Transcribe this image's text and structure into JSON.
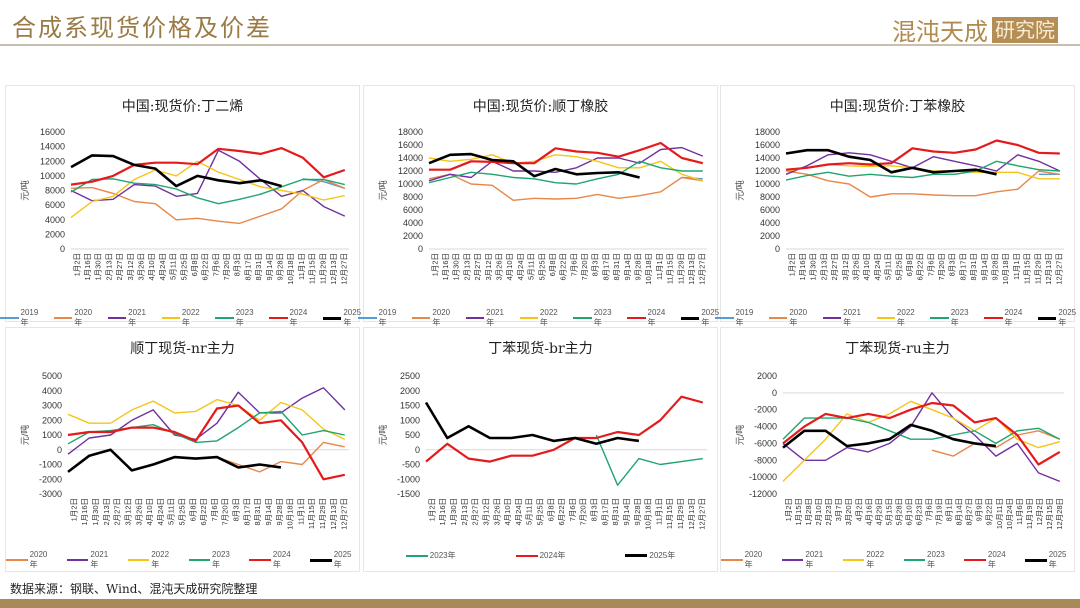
{
  "header": {
    "title": "合成系现货价格及价差",
    "logo_text": "混沌天成",
    "logo_box": "研究院"
  },
  "source": "数据来源：钢联、Wind、混沌天成研究院整理",
  "colors": {
    "2019年": "#5B9BD5",
    "2020年": "#E8874A",
    "2021年": "#7030A0",
    "2022年": "#F5C518",
    "2023年": "#1FA56E",
    "2024年": "#E41A1C",
    "2025年": "#000000"
  },
  "chart_data": [
    {
      "type": "line",
      "title": "中国:现货价:丁二烯",
      "ylabel": "元/吨",
      "ylim": [
        0,
        16000
      ],
      "yticks": [
        0,
        2000,
        4000,
        6000,
        8000,
        10000,
        12000,
        14000,
        16000
      ],
      "xticks": [
        "1月2日",
        "1月16日",
        "1月30日",
        "2月13日",
        "2月27日",
        "3月12日",
        "3月26日",
        "4月10日",
        "4月24日",
        "5月11日",
        "5月25日",
        "6月8日",
        "6月22日",
        "7月6日",
        "7月20日",
        "8月3日",
        "8月17日",
        "8月31日",
        "9月14日",
        "9月28日",
        "10月18日",
        "11月1日",
        "11月15日",
        "11月29日",
        "12月13日",
        "12月27日"
      ],
      "series": [
        {
          "name": "2019年",
          "values": [
            null,
            null,
            null,
            null,
            null,
            null,
            null,
            null,
            null,
            null,
            null,
            9600,
            9200,
            8300
          ]
        },
        {
          "name": "2020年",
          "values": [
            8300,
            8400,
            7600,
            6500,
            6200,
            4000,
            4200,
            3800,
            3500,
            4500,
            5500,
            8000,
            9500,
            8300
          ]
        },
        {
          "name": "2021年",
          "values": [
            8000,
            6600,
            6800,
            8800,
            8600,
            7200,
            7600,
            13500,
            12000,
            9500,
            7200,
            8000,
            5800,
            4500
          ]
        },
        {
          "name": "2022年",
          "values": [
            4300,
            6500,
            7200,
            9500,
            10800,
            10000,
            12000,
            10500,
            9500,
            8500,
            8000,
            7500,
            6700,
            7300
          ]
        },
        {
          "name": "2023年",
          "values": [
            7800,
            9500,
            9600,
            9000,
            8800,
            8200,
            7000,
            6200,
            6800,
            7500,
            8500,
            9500,
            9500,
            8800
          ]
        },
        {
          "name": "2024年",
          "values": [
            8800,
            9200,
            10000,
            11500,
            11800,
            11800,
            11600,
            13700,
            13400,
            13000,
            13800,
            12500,
            9800,
            10800
          ]
        },
        {
          "name": "2025年",
          "values": [
            11200,
            12800,
            12700,
            11500,
            11000,
            8600,
            10000,
            9400,
            9000,
            9400,
            8600,
            null,
            null,
            null
          ]
        }
      ]
    },
    {
      "type": "line",
      "title": "中国:现货价:顺丁橡胶",
      "ylabel": "元/吨",
      "ylim": [
        0,
        18000
      ],
      "yticks": [
        0,
        2000,
        4000,
        6000,
        8000,
        10000,
        12000,
        14000,
        16000,
        18000
      ],
      "xticks": [
        "1月2日",
        "1月16日",
        "1月30日",
        "2月13日",
        "2月27日",
        "3月12日",
        "3月26日",
        "4月10日",
        "4月24日",
        "5月11日",
        "5月25日",
        "6月8日",
        "6月22日",
        "7月6日",
        "7月20日",
        "8月3日",
        "8月17日",
        "8月31日",
        "9月14日",
        "9月28日",
        "10月18日",
        "11月1日",
        "11月15日",
        "11月29日",
        "12月13日",
        "12月27日"
      ],
      "series": [
        {
          "name": "2019年",
          "values": [
            null,
            null,
            null,
            null,
            null,
            null,
            null,
            null,
            null,
            null,
            null,
            null,
            11000,
            10800
          ]
        },
        {
          "name": "2020年",
          "values": [
            10800,
            11500,
            10000,
            9800,
            7500,
            7800,
            7700,
            7800,
            8400,
            7800,
            8200,
            8800,
            11000,
            10500
          ]
        },
        {
          "name": "2021年",
          "values": [
            10500,
            11500,
            11000,
            13500,
            12000,
            12000,
            11800,
            12500,
            14000,
            14000,
            13200,
            15300,
            15600,
            14300
          ]
        },
        {
          "name": "2022年",
          "values": [
            14000,
            13500,
            13800,
            14500,
            13200,
            13500,
            14500,
            14200,
            13500,
            12500,
            12500,
            13500,
            11500,
            10500
          ]
        },
        {
          "name": "2023年",
          "values": [
            10200,
            11000,
            11800,
            11500,
            11000,
            10800,
            10200,
            10000,
            10800,
            11500,
            13500,
            12500,
            12000,
            12000
          ]
        },
        {
          "name": "2024年",
          "values": [
            12200,
            12200,
            13500,
            13400,
            13200,
            13200,
            15500,
            15000,
            14800,
            14200,
            15200,
            16300,
            14000,
            13200
          ]
        },
        {
          "name": "2025年",
          "values": [
            13200,
            14500,
            14600,
            13700,
            13500,
            11200,
            12300,
            11500,
            11700,
            11800,
            11000,
            null,
            null,
            null
          ]
        }
      ]
    },
    {
      "type": "line",
      "title": "中国:现货价:丁苯橡胶",
      "ylabel": "元/吨",
      "ylim": [
        0,
        18000
      ],
      "yticks": [
        0,
        2000,
        4000,
        6000,
        8000,
        10000,
        12000,
        14000,
        16000,
        18000
      ],
      "xticks": [
        "1月2日",
        "1月16日",
        "1月30日",
        "2月13日",
        "2月27日",
        "3月12日",
        "3月26日",
        "4月10日",
        "4月24日",
        "5月11日",
        "5月25日",
        "6月8日",
        "6月22日",
        "7月6日",
        "7月20日",
        "8月3日",
        "8月17日",
        "8月31日",
        "9月14日",
        "9月28日",
        "10月18日",
        "11月1日",
        "11月15日",
        "11月29日",
        "12月13日",
        "12月27日"
      ],
      "series": [
        {
          "name": "2019年",
          "values": [
            null,
            null,
            null,
            null,
            null,
            null,
            null,
            null,
            null,
            null,
            null,
            null,
            11500,
            11500
          ]
        },
        {
          "name": "2020年",
          "values": [
            12000,
            11500,
            10500,
            10000,
            8000,
            8500,
            8500,
            8300,
            8200,
            8200,
            8800,
            9200,
            12000,
            11500
          ]
        },
        {
          "name": "2021年",
          "values": [
            11500,
            12800,
            14500,
            14800,
            14500,
            13500,
            12500,
            14200,
            13500,
            12800,
            12000,
            14500,
            13500,
            12000
          ]
        },
        {
          "name": "2022年",
          "values": [
            12000,
            12500,
            13000,
            12800,
            12700,
            12800,
            12500,
            12000,
            12000,
            11800,
            11800,
            11800,
            10800,
            10800
          ]
        },
        {
          "name": "2023年",
          "values": [
            10600,
            11300,
            11800,
            11200,
            11500,
            11200,
            11000,
            11500,
            11500,
            12000,
            13500,
            12800,
            12200,
            12000
          ]
        },
        {
          "name": "2024年",
          "values": [
            12200,
            12500,
            13000,
            13200,
            13000,
            13200,
            15500,
            15000,
            14800,
            15300,
            16700,
            16000,
            14800,
            14700
          ]
        },
        {
          "name": "2025年",
          "values": [
            14700,
            15200,
            15200,
            14200,
            13700,
            11800,
            12500,
            11800,
            12000,
            12200,
            11500,
            null,
            null,
            null
          ]
        }
      ]
    },
    {
      "type": "line",
      "title": "顺丁现货-nr主力",
      "ylabel": "元/吨",
      "ylim": [
        -3000,
        5000
      ],
      "yticks": [
        -3000,
        -2000,
        -1000,
        0,
        1000,
        2000,
        3000,
        4000,
        5000
      ],
      "xticks": [
        "1月2日",
        "1月16日",
        "1月30日",
        "2月13日",
        "2月27日",
        "3月12日",
        "3月26日",
        "4月10日",
        "4月24日",
        "5月11日",
        "5月25日",
        "6月8日",
        "6月22日",
        "7月6日",
        "7月20日",
        "8月3日",
        "8月17日",
        "8月31日",
        "9月14日",
        "9月28日",
        "10月18日",
        "11月1日",
        "11月15日",
        "11月29日",
        "12月13日",
        "12月27日"
      ],
      "series": [
        {
          "name": "2020年",
          "values": [
            null,
            null,
            null,
            null,
            null,
            null,
            null,
            -500,
            -1000,
            -1500,
            -800,
            -1000,
            500,
            200
          ]
        },
        {
          "name": "2021年",
          "values": [
            -300,
            800,
            1000,
            2000,
            2700,
            1000,
            700,
            1800,
            3900,
            2500,
            2500,
            3500,
            4200,
            2700
          ]
        },
        {
          "name": "2022年",
          "values": [
            2400,
            1800,
            1800,
            2700,
            3300,
            2500,
            2600,
            3400,
            3000,
            2000,
            3200,
            2700,
            1400,
            700
          ]
        },
        {
          "name": "2023年",
          "values": [
            400,
            1200,
            1300,
            1500,
            1700,
            1100,
            500,
            600,
            1500,
            2500,
            2600,
            1000,
            1300,
            1000
          ]
        },
        {
          "name": "2024年",
          "values": [
            1000,
            1200,
            1200,
            1500,
            1500,
            1200,
            600,
            2800,
            3000,
            1800,
            2000,
            500,
            -2000,
            -1700
          ]
        },
        {
          "name": "2025年",
          "values": [
            -1500,
            -400,
            0,
            -1400,
            -1000,
            -500,
            -600,
            -500,
            -1200,
            -1000,
            -1200,
            null,
            null,
            null
          ]
        }
      ]
    },
    {
      "type": "line",
      "title": "丁苯现货-br主力",
      "ylabel": "元/吨",
      "ylim": [
        -1500,
        2500
      ],
      "yticks": [
        -1500,
        -1000,
        -500,
        0,
        500,
        1000,
        1500,
        2000,
        2500
      ],
      "xticks": [
        "1月2日",
        "1月16日",
        "1月30日",
        "2月13日",
        "2月27日",
        "3月12日",
        "3月26日",
        "4月10日",
        "4月24日",
        "5月11日",
        "5月25日",
        "6月8日",
        "6月22日",
        "7月6日",
        "7月20日",
        "8月3日",
        "8月17日",
        "8月31日",
        "9月14日",
        "9月28日",
        "10月18日",
        "11月1日",
        "11月15日",
        "11月29日",
        "12月13日",
        "12月27日"
      ],
      "series": [
        {
          "name": "2023年",
          "values": [
            null,
            null,
            null,
            null,
            null,
            null,
            null,
            null,
            500,
            -1200,
            -300,
            -500,
            -400,
            -300
          ]
        },
        {
          "name": "2024年",
          "values": [
            -400,
            200,
            -300,
            -400,
            -200,
            -200,
            0,
            400,
            400,
            600,
            500,
            1000,
            1800,
            1600
          ]
        },
        {
          "name": "2025年",
          "values": [
            1600,
            400,
            800,
            400,
            400,
            500,
            300,
            400,
            200,
            400,
            300,
            null,
            null,
            null
          ]
        }
      ]
    },
    {
      "type": "line",
      "title": "丁苯现货-ru主力",
      "ylabel": "元/吨",
      "ylim": [
        -12000,
        2000
      ],
      "yticks": [
        -12000,
        -10000,
        -8000,
        -6000,
        -4000,
        -2000,
        0,
        2000
      ],
      "xticks": [
        "1月2日",
        "1月15日",
        "1月28日",
        "2月10日",
        "2月23日",
        "3月7日",
        "3月20日",
        "4月2日",
        "4月16日",
        "4月29日",
        "5月15日",
        "5月28日",
        "6月10日",
        "6月23日",
        "7月6日",
        "7月19日",
        "8月1日",
        "8月14日",
        "8月27日",
        "9月9日",
        "9月22日",
        "10月11日",
        "10月24日",
        "11月6日",
        "11月19日",
        "12月2日",
        "12月15日",
        "12月28日"
      ],
      "series": [
        {
          "name": "2020年",
          "values": [
            null,
            null,
            null,
            null,
            null,
            null,
            null,
            -6800,
            -7500,
            -6000,
            -6500,
            -5000,
            -4500,
            -5500
          ]
        },
        {
          "name": "2021年",
          "values": [
            -6000,
            -8000,
            -8000,
            -6500,
            -7000,
            -6000,
            -4000,
            0,
            -3000,
            -5000,
            -7500,
            -6000,
            -9500,
            -10500
          ]
        },
        {
          "name": "2022年",
          "values": [
            -10500,
            -8000,
            -5500,
            -2500,
            -3500,
            -2500,
            -1000,
            -2000,
            -3000,
            -4500,
            -3000,
            -5500,
            -6500,
            -5800
          ]
        },
        {
          "name": "2023年",
          "values": [
            -5500,
            -3000,
            -3000,
            -3000,
            -3500,
            -4500,
            -5500,
            -5500,
            -5000,
            -4500,
            -6000,
            -4500,
            -4200,
            -5500
          ]
        },
        {
          "name": "2024年",
          "values": [
            -6000,
            -4000,
            -2500,
            -3000,
            -2500,
            -3000,
            -2000,
            -1200,
            -1500,
            -3500,
            -3000,
            -5000,
            -8500,
            -7000
          ]
        },
        {
          "name": "2025年",
          "values": [
            -6500,
            -4500,
            -4500,
            -6300,
            -6000,
            -5500,
            -3800,
            -4500,
            -5500,
            -6000,
            -6300,
            null,
            null,
            null
          ]
        }
      ]
    }
  ]
}
